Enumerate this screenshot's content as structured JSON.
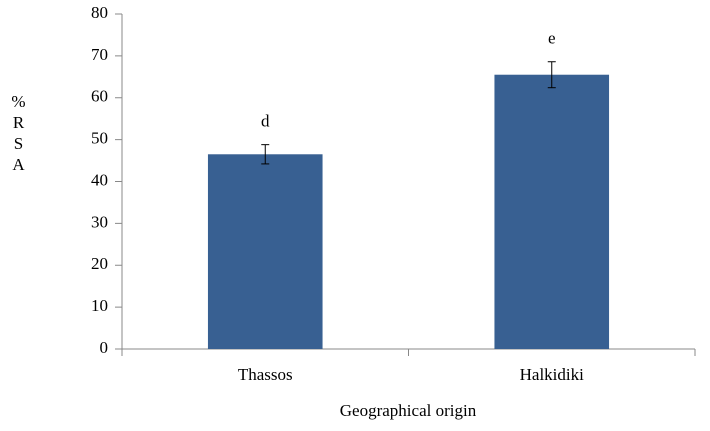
{
  "chart_data": {
    "type": "bar",
    "x_label": "Geographical origin",
    "y_label": "%RSA",
    "categories": [
      "Thassos",
      "Halkidiki"
    ],
    "values": [
      46.5,
      65.5
    ],
    "errors": [
      2.3,
      3.1
    ],
    "annotations": [
      "d",
      "e"
    ],
    "color": "#386092",
    "ylim": [
      0,
      80
    ],
    "yticks": [
      0,
      10,
      20,
      30,
      40,
      50,
      60,
      70,
      80
    ],
    "grid": false
  }
}
